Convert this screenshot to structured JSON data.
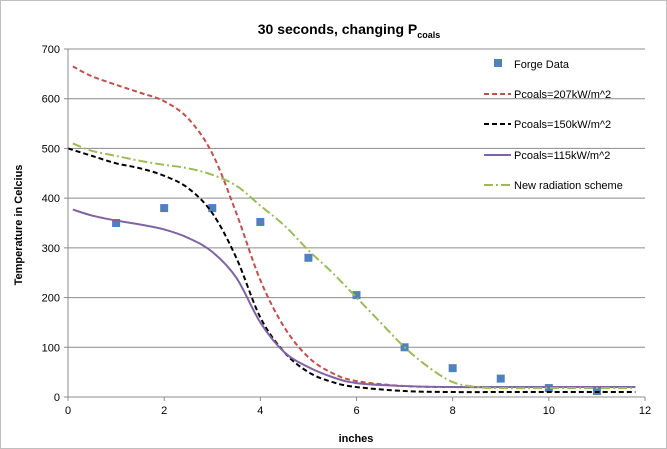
{
  "chart_data": {
    "type": "line",
    "title": "30 seconds, changing P",
    "title_subscript": "coals",
    "xlabel": "inches",
    "ylabel": "Temperature in Celcius",
    "xlim": [
      0,
      12
    ],
    "ylim": [
      0,
      700
    ],
    "x_ticks": [
      0,
      2,
      4,
      6,
      8,
      10,
      12
    ],
    "y_ticks": [
      0,
      100,
      200,
      300,
      400,
      500,
      600,
      700
    ],
    "grid": "horizontal",
    "legend_position": "right",
    "series": [
      {
        "name": "Forge Data",
        "style": "markers",
        "color": "#4f81bd",
        "x": [
          1,
          2,
          3,
          4,
          5,
          6,
          7,
          8,
          9,
          10,
          11
        ],
        "y": [
          350,
          380,
          380,
          352,
          280,
          205,
          100,
          58,
          37,
          18,
          12
        ]
      },
      {
        "name": "Pcoals=207kW/m^2",
        "style": "dash",
        "color": "#c0504d",
        "x": [
          0.1,
          0.5,
          1,
          1.5,
          2,
          2.5,
          3,
          3.5,
          4,
          4.5,
          5,
          5.5,
          6,
          7,
          8,
          9,
          10,
          11,
          11.8
        ],
        "y": [
          665,
          645,
          628,
          612,
          595,
          560,
          490,
          370,
          235,
          140,
          80,
          48,
          32,
          22,
          20,
          20,
          20,
          20,
          20
        ]
      },
      {
        "name": "Pcoals=150kW/m^2",
        "style": "dash",
        "color": "#000000",
        "x": [
          0,
          0.5,
          1,
          1.5,
          2,
          2.5,
          3,
          3.5,
          4,
          4.5,
          5,
          5.5,
          6,
          7,
          8,
          9,
          10,
          11,
          11.8
        ],
        "y": [
          500,
          485,
          470,
          460,
          445,
          420,
          370,
          280,
          160,
          90,
          50,
          30,
          20,
          12,
          10,
          10,
          10,
          10,
          10
        ]
      },
      {
        "name": "Pcoals=115kW/m^2",
        "style": "solid",
        "color": "#8064a2",
        "x": [
          0.1,
          0.5,
          1,
          1.5,
          2,
          2.5,
          3,
          3.5,
          4,
          4.5,
          5,
          5.5,
          6,
          7,
          8,
          9,
          10,
          11,
          11.8
        ],
        "y": [
          377,
          365,
          355,
          347,
          337,
          320,
          292,
          240,
          150,
          90,
          60,
          40,
          28,
          22,
          20,
          20,
          20,
          20,
          20
        ]
      },
      {
        "name": "New radiation scheme",
        "style": "dashdot",
        "color": "#9bbb59",
        "x": [
          0.1,
          0.5,
          1,
          1.5,
          2,
          2.5,
          3,
          3.5,
          4,
          4.5,
          5,
          5.5,
          6,
          6.5,
          7,
          7.5,
          8,
          8.5,
          9,
          10,
          11,
          11.8
        ],
        "y": [
          510,
          495,
          485,
          475,
          467,
          460,
          447,
          425,
          385,
          345,
          295,
          250,
          200,
          150,
          100,
          60,
          30,
          20,
          18,
          18,
          18,
          18
        ]
      }
    ]
  }
}
